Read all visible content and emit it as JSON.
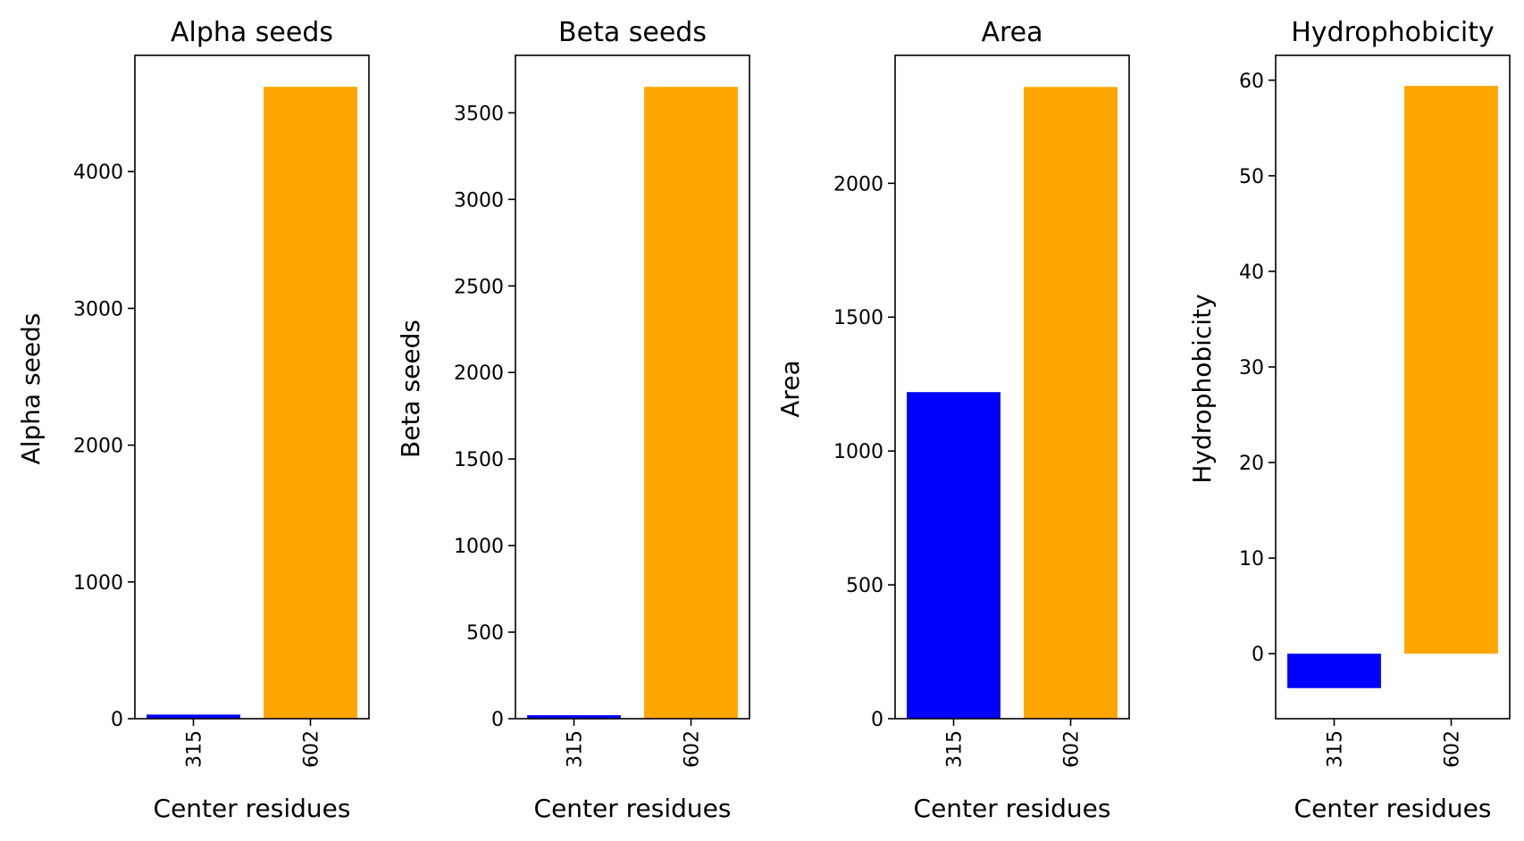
{
  "chart_data": [
    {
      "type": "bar",
      "title": "Alpha seeds",
      "xlabel": "Center residues",
      "ylabel": "Alpha seeds",
      "categories": [
        "315",
        "602"
      ],
      "values": [
        30,
        4620
      ],
      "colors": [
        "#0000ff",
        "#ffa500"
      ],
      "ylim": [
        0,
        4850
      ],
      "yticks": [
        0,
        1000,
        2000,
        3000,
        4000
      ],
      "grid": false
    },
    {
      "type": "bar",
      "title": "Beta seeds",
      "xlabel": "Center residues",
      "ylabel": "Beta seeds",
      "categories": [
        "315",
        "602"
      ],
      "values": [
        20,
        3650
      ],
      "colors": [
        "#0000ff",
        "#ffa500"
      ],
      "ylim": [
        0,
        3832
      ],
      "yticks": [
        0,
        500,
        1000,
        1500,
        2000,
        2500,
        3000,
        3500
      ],
      "grid": false
    },
    {
      "type": "bar",
      "title": "Area",
      "xlabel": "Center residues",
      "ylabel": "Area",
      "categories": [
        "315",
        "602"
      ],
      "values": [
        1220,
        2360
      ],
      "colors": [
        "#0000ff",
        "#ffa500"
      ],
      "ylim": [
        0,
        2478
      ],
      "yticks": [
        0,
        500,
        1000,
        1500,
        2000
      ],
      "grid": false
    },
    {
      "type": "bar",
      "title": "Hydrophobicity",
      "xlabel": "Center residues",
      "ylabel": "Hydrophobicity",
      "categories": [
        "315",
        "602"
      ],
      "values": [
        -3.6,
        59.4
      ],
      "colors": [
        "#0000ff",
        "#ffa500"
      ],
      "ylim": [
        -6.8,
        62.6
      ],
      "yticks": [
        0,
        10,
        20,
        30,
        40,
        50,
        60
      ],
      "grid": false
    }
  ]
}
